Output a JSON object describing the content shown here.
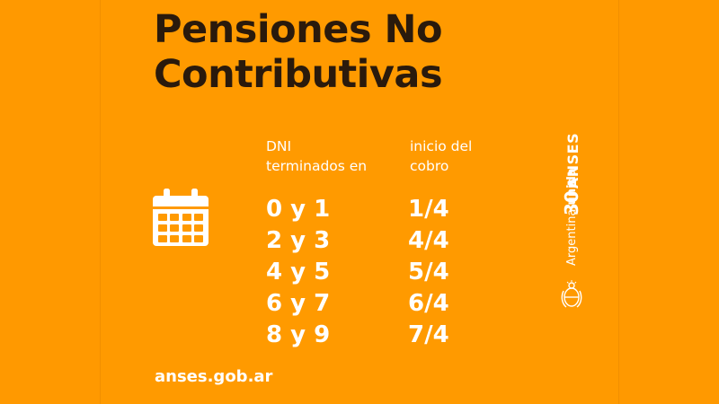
{
  "title": {
    "line1": "Pensiones No",
    "line2": "Contributivas"
  },
  "table": {
    "header_dni": [
      "DNI",
      "terminados en"
    ],
    "header_cobro": [
      "inicio del",
      "cobro"
    ],
    "rows": [
      {
        "dni": "0 y 1",
        "fecha": "1/4"
      },
      {
        "dni": "2 y 3",
        "fecha": "4/4"
      },
      {
        "dni": "4 y 5",
        "fecha": "5/4"
      },
      {
        "dni": "6 y 7",
        "fecha": "6/4"
      },
      {
        "dni": "8 y 9",
        "fecha": "7/4"
      }
    ]
  },
  "footer": {
    "url": "anses.gob.ar"
  },
  "brand": {
    "anses_thirty": "30",
    "anses_name": "ANSES",
    "argentina": "Argentina",
    "unida": "unida"
  },
  "icons": [
    "calendar-icon",
    "coat-of-arms-icon"
  ],
  "colors": {
    "background": "#ff9a00",
    "title_text": "#2a1a0c",
    "text": "#ffffff"
  }
}
